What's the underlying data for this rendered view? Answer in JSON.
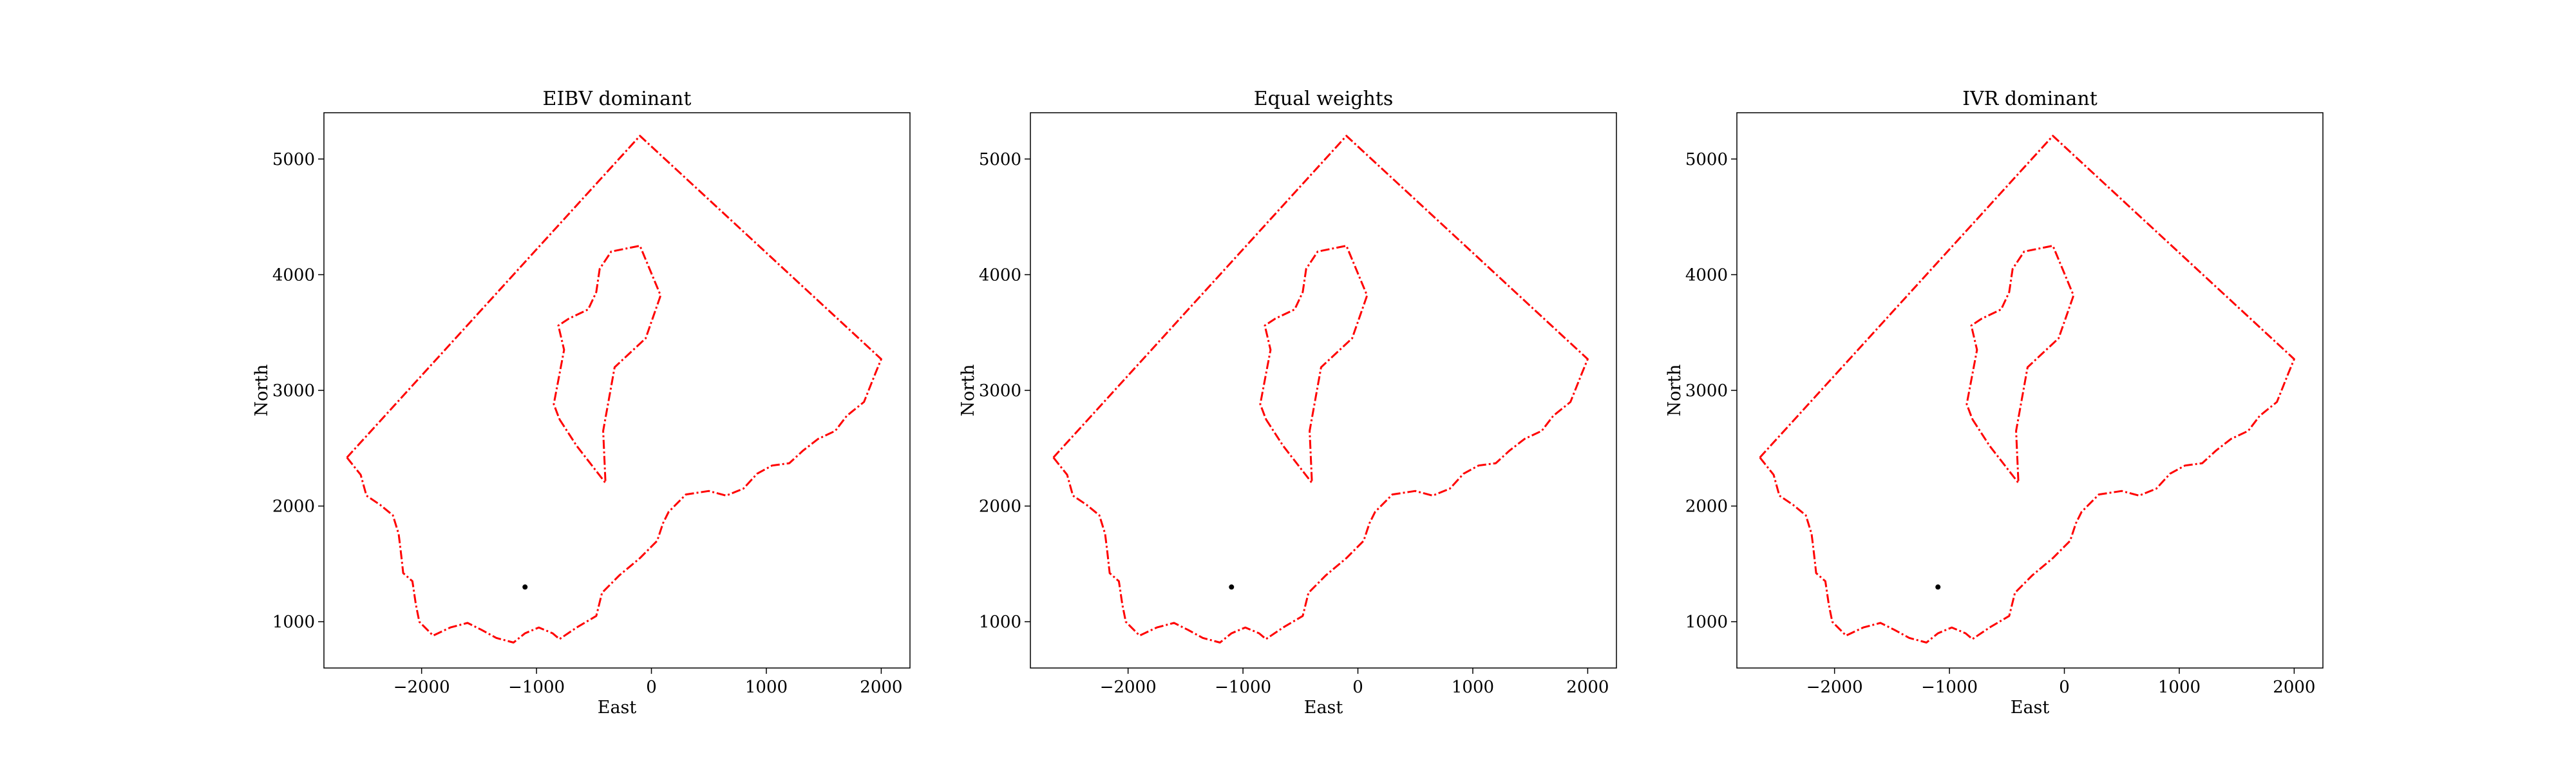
{
  "chart_data": [
    {
      "type": "line",
      "title": "EIBV dominant",
      "xlabel": "East",
      "ylabel": "North",
      "xlim": [
        -2850,
        2250
      ],
      "ylim": [
        600,
        5400
      ],
      "xticks": [
        -2000,
        -1000,
        0,
        1000,
        2000
      ],
      "xtick_labels": [
        "−2000",
        "−1000",
        "0",
        "1000",
        "2000"
      ],
      "yticks": [
        1000,
        2000,
        3000,
        4000,
        5000
      ],
      "ytick_labels": [
        "1000",
        "2000",
        "3000",
        "4000",
        "5000"
      ],
      "grid": false,
      "series": [
        {
          "style": "dash-dot",
          "color": "#ff0000",
          "points": [
            [
              -2650,
              2420
            ],
            [
              -2530,
              2270
            ],
            [
              -2480,
              2090
            ],
            [
              -2360,
              2010
            ],
            [
              -2250,
              1920
            ],
            [
              -2200,
              1760
            ],
            [
              -2180,
              1600
            ],
            [
              -2160,
              1420
            ],
            [
              -2080,
              1350
            ],
            [
              -2050,
              1150
            ],
            [
              -2020,
              1000
            ],
            [
              -1900,
              880
            ],
            [
              -1750,
              950
            ],
            [
              -1600,
              990
            ],
            [
              -1480,
              930
            ],
            [
              -1350,
              860
            ],
            [
              -1200,
              820
            ],
            [
              -1100,
              900
            ],
            [
              -980,
              950
            ],
            [
              -860,
              900
            ],
            [
              -800,
              850
            ],
            [
              -650,
              950
            ],
            [
              -480,
              1050
            ],
            [
              -430,
              1250
            ],
            [
              -280,
              1400
            ],
            [
              -100,
              1550
            ],
            [
              50,
              1700
            ],
            [
              100,
              1850
            ],
            [
              150,
              1950
            ],
            [
              300,
              2100
            ],
            [
              500,
              2130
            ],
            [
              650,
              2090
            ],
            [
              800,
              2150
            ],
            [
              920,
              2280
            ],
            [
              1050,
              2350
            ],
            [
              1200,
              2370
            ],
            [
              1320,
              2480
            ],
            [
              1450,
              2580
            ],
            [
              1600,
              2650
            ],
            [
              1700,
              2780
            ],
            [
              1850,
              2900
            ],
            [
              1950,
              3150
            ],
            [
              2000,
              3270
            ],
            [
              -100,
              5200
            ],
            [
              -2650,
              2420
            ]
          ]
        },
        {
          "style": "dash-dot",
          "color": "#ff0000",
          "points": [
            [
              -800,
              2750
            ],
            [
              -650,
              2520
            ],
            [
              -400,
              2200
            ],
            [
              -420,
              2650
            ],
            [
              -320,
              3200
            ],
            [
              -50,
              3450
            ],
            [
              80,
              3820
            ],
            [
              -100,
              4250
            ],
            [
              -350,
              4200
            ],
            [
              -450,
              4050
            ],
            [
              -480,
              3850
            ],
            [
              -550,
              3700
            ],
            [
              -720,
              3620
            ],
            [
              -810,
              3560
            ],
            [
              -760,
              3350
            ],
            [
              -850,
              2880
            ],
            [
              -800,
              2750
            ]
          ]
        },
        {
          "style": "marker",
          "color": "#000000",
          "points": [
            [
              -1100,
              1300
            ]
          ]
        }
      ]
    },
    {
      "type": "line",
      "title": "Equal weights",
      "xlabel": "East",
      "ylabel": "North",
      "xlim": [
        -2850,
        2250
      ],
      "ylim": [
        600,
        5400
      ],
      "xticks": [
        -2000,
        -1000,
        0,
        1000,
        2000
      ],
      "xtick_labels": [
        "−2000",
        "−1000",
        "0",
        "1000",
        "2000"
      ],
      "yticks": [
        1000,
        2000,
        3000,
        4000,
        5000
      ],
      "ytick_labels": [
        "1000",
        "2000",
        "3000",
        "4000",
        "5000"
      ],
      "grid": false,
      "series": [
        {
          "style": "dash-dot",
          "color": "#ff0000",
          "points": [
            [
              -2650,
              2420
            ],
            [
              -2530,
              2270
            ],
            [
              -2480,
              2090
            ],
            [
              -2360,
              2010
            ],
            [
              -2250,
              1920
            ],
            [
              -2200,
              1760
            ],
            [
              -2180,
              1600
            ],
            [
              -2160,
              1420
            ],
            [
              -2080,
              1350
            ],
            [
              -2050,
              1150
            ],
            [
              -2020,
              1000
            ],
            [
              -1900,
              880
            ],
            [
              -1750,
              950
            ],
            [
              -1600,
              990
            ],
            [
              -1480,
              930
            ],
            [
              -1350,
              860
            ],
            [
              -1200,
              820
            ],
            [
              -1100,
              900
            ],
            [
              -980,
              950
            ],
            [
              -860,
              900
            ],
            [
              -800,
              850
            ],
            [
              -650,
              950
            ],
            [
              -480,
              1050
            ],
            [
              -430,
              1250
            ],
            [
              -280,
              1400
            ],
            [
              -100,
              1550
            ],
            [
              50,
              1700
            ],
            [
              100,
              1850
            ],
            [
              150,
              1950
            ],
            [
              300,
              2100
            ],
            [
              500,
              2130
            ],
            [
              650,
              2090
            ],
            [
              800,
              2150
            ],
            [
              920,
              2280
            ],
            [
              1050,
              2350
            ],
            [
              1200,
              2370
            ],
            [
              1320,
              2480
            ],
            [
              1450,
              2580
            ],
            [
              1600,
              2650
            ],
            [
              1700,
              2780
            ],
            [
              1850,
              2900
            ],
            [
              1950,
              3150
            ],
            [
              2000,
              3270
            ],
            [
              -100,
              5200
            ],
            [
              -2650,
              2420
            ]
          ]
        },
        {
          "style": "dash-dot",
          "color": "#ff0000",
          "points": [
            [
              -800,
              2750
            ],
            [
              -650,
              2520
            ],
            [
              -400,
              2200
            ],
            [
              -420,
              2650
            ],
            [
              -320,
              3200
            ],
            [
              -50,
              3450
            ],
            [
              80,
              3820
            ],
            [
              -100,
              4250
            ],
            [
              -350,
              4200
            ],
            [
              -450,
              4050
            ],
            [
              -480,
              3850
            ],
            [
              -550,
              3700
            ],
            [
              -720,
              3620
            ],
            [
              -810,
              3560
            ],
            [
              -760,
              3350
            ],
            [
              -850,
              2880
            ],
            [
              -800,
              2750
            ]
          ]
        },
        {
          "style": "marker",
          "color": "#000000",
          "points": [
            [
              -1100,
              1300
            ]
          ]
        }
      ]
    },
    {
      "type": "line",
      "title": "IVR dominant",
      "xlabel": "East",
      "ylabel": "North",
      "xlim": [
        -2850,
        2250
      ],
      "ylim": [
        600,
        5400
      ],
      "xticks": [
        -2000,
        -1000,
        0,
        1000,
        2000
      ],
      "xtick_labels": [
        "−2000",
        "−1000",
        "0",
        "1000",
        "2000"
      ],
      "yticks": [
        1000,
        2000,
        3000,
        4000,
        5000
      ],
      "ytick_labels": [
        "1000",
        "2000",
        "3000",
        "4000",
        "5000"
      ],
      "grid": false,
      "series": [
        {
          "style": "dash-dot",
          "color": "#ff0000",
          "points": [
            [
              -2650,
              2420
            ],
            [
              -2530,
              2270
            ],
            [
              -2480,
              2090
            ],
            [
              -2360,
              2010
            ],
            [
              -2250,
              1920
            ],
            [
              -2200,
              1760
            ],
            [
              -2180,
              1600
            ],
            [
              -2160,
              1420
            ],
            [
              -2080,
              1350
            ],
            [
              -2050,
              1150
            ],
            [
              -2020,
              1000
            ],
            [
              -1900,
              880
            ],
            [
              -1750,
              950
            ],
            [
              -1600,
              990
            ],
            [
              -1480,
              930
            ],
            [
              -1350,
              860
            ],
            [
              -1200,
              820
            ],
            [
              -1100,
              900
            ],
            [
              -980,
              950
            ],
            [
              -860,
              900
            ],
            [
              -800,
              850
            ],
            [
              -650,
              950
            ],
            [
              -480,
              1050
            ],
            [
              -430,
              1250
            ],
            [
              -280,
              1400
            ],
            [
              -100,
              1550
            ],
            [
              50,
              1700
            ],
            [
              100,
              1850
            ],
            [
              150,
              1950
            ],
            [
              300,
              2100
            ],
            [
              500,
              2130
            ],
            [
              650,
              2090
            ],
            [
              800,
              2150
            ],
            [
              920,
              2280
            ],
            [
              1050,
              2350
            ],
            [
              1200,
              2370
            ],
            [
              1320,
              2480
            ],
            [
              1450,
              2580
            ],
            [
              1600,
              2650
            ],
            [
              1700,
              2780
            ],
            [
              1850,
              2900
            ],
            [
              1950,
              3150
            ],
            [
              2000,
              3270
            ],
            [
              -100,
              5200
            ],
            [
              -2650,
              2420
            ]
          ]
        },
        {
          "style": "dash-dot",
          "color": "#ff0000",
          "points": [
            [
              -800,
              2750
            ],
            [
              -650,
              2520
            ],
            [
              -400,
              2200
            ],
            [
              -420,
              2650
            ],
            [
              -320,
              3200
            ],
            [
              -50,
              3450
            ],
            [
              80,
              3820
            ],
            [
              -100,
              4250
            ],
            [
              -350,
              4200
            ],
            [
              -450,
              4050
            ],
            [
              -480,
              3850
            ],
            [
              -550,
              3700
            ],
            [
              -720,
              3620
            ],
            [
              -810,
              3560
            ],
            [
              -760,
              3350
            ],
            [
              -850,
              2880
            ],
            [
              -800,
              2750
            ]
          ]
        },
        {
          "style": "marker",
          "color": "#000000",
          "points": [
            [
              -1100,
              1300
            ]
          ]
        }
      ]
    }
  ]
}
